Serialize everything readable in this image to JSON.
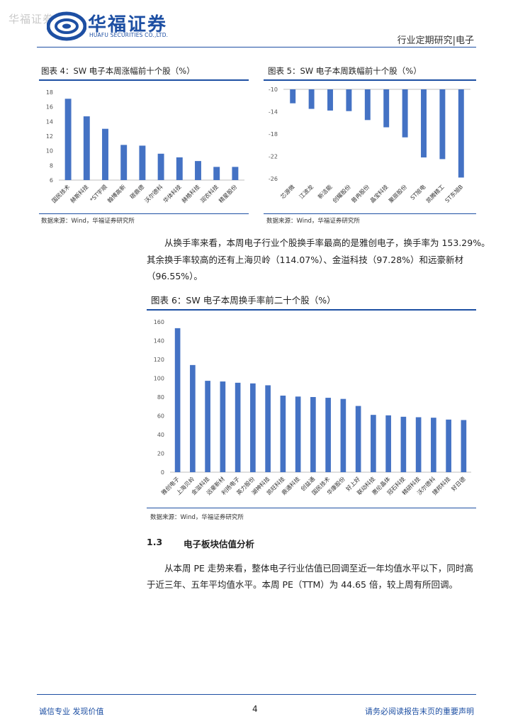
{
  "header": {
    "watermark": "华福证券",
    "brand_cn": "华福证券",
    "brand_en": "HUAFU SECURITIES CO.,LTD.",
    "section": "行业定期研究|电子",
    "logo_color": "#1d4fa3"
  },
  "fig4": {
    "title": "图表 4：SW 电子本周涨幅前十个股（%）",
    "source": "数据来源：Wind，华福证券研究所"
  },
  "fig5": {
    "title": "图表 5：SW 电子本周跌幅前十个股（%）",
    "source": "数据来源：Wind，华福证券研究所"
  },
  "para1": {
    "line1": "从换手率来看，本周电子行业个股换手率最高的是雅创电子，换手率为 153.29%。",
    "line2": "其余换手率较高的还有上海贝岭（114.07%）、金溢科技（97.28%）和远豪新材",
    "line3": "（96.55%）。"
  },
  "fig6": {
    "title": "图表 6：SW 电子本周换手率前二十个股（%）",
    "source": "数据来源：Wind，华福证券研究所"
  },
  "section": {
    "number": "1.3",
    "title": "电子板块估值分析"
  },
  "para2": {
    "line1": "从本周 PE 走势来看，整体电子行业估值已回调至近一年均值水平以下，同时高",
    "line2": "于近三年、五年平均值水平。本周 PE（TTM）为 44.65 倍，较上周有所回调。"
  },
  "footer": {
    "left": "诚信专业  发现价值",
    "page": "4",
    "right": "请务必阅读报告末页的重要声明"
  },
  "chart_data": [
    {
      "type": "bar",
      "categories": [
        "国民技术",
        "赫斯科技",
        "*ST宇顺",
        "翰博高新",
        "碳鼎德",
        "沃尔德科",
        "华体科技",
        "赫格科技",
        "润农科技",
        "精星股份"
      ],
      "values": [
        17.1,
        14.7,
        13.0,
        10.8,
        10.7,
        9.6,
        9.1,
        8.6,
        7.8,
        7.8
      ],
      "ylim": [
        6,
        18
      ],
      "yticks": [
        6,
        8,
        10,
        12,
        14,
        16,
        18
      ],
      "color": "#4472c4"
    },
    {
      "type": "bar",
      "categories": [
        "芯源微",
        "江波龙",
        "新洁能",
        "创耀股份",
        "普冉股份",
        "晶宝科技",
        "聚辰股份",
        "ST旭电",
        "凯腾精工",
        "ST东旭B"
      ],
      "values": [
        -12.5,
        -13.5,
        -13.8,
        -13.9,
        -15.5,
        -16.8,
        -18.6,
        -22.2,
        -22.5,
        -25.8
      ],
      "ylim": [
        -26,
        -10
      ],
      "yticks": [
        -10,
        -14,
        -18,
        -22,
        -26
      ],
      "color": "#4472c4"
    },
    {
      "type": "bar",
      "categories": [
        "雅创电子",
        "上海贝岭",
        "金溢科技",
        "远豪新材",
        "利扬电子",
        "英力股份",
        "湖神科技",
        "凯旺科技",
        "鼎通科技",
        "创益通",
        "国民技术",
        "华康股份",
        "好上好",
        "联动科技",
        "惠伦晶体",
        "冠石科技",
        "精研科技",
        "沃尔德科",
        "捷邦科技",
        "好日德"
      ],
      "values": [
        153.29,
        114.07,
        97.28,
        96.55,
        95.2,
        94.5,
        92.5,
        81.5,
        80.5,
        80.0,
        79.2,
        78.0,
        70.5,
        61.0,
        60.5,
        59.0,
        58.5,
        58.0,
        56.0,
        55.5
      ],
      "ylim": [
        0,
        160
      ],
      "yticks": [
        0,
        20,
        40,
        60,
        80,
        100,
        120,
        140,
        160
      ],
      "color": "#4472c4"
    }
  ]
}
